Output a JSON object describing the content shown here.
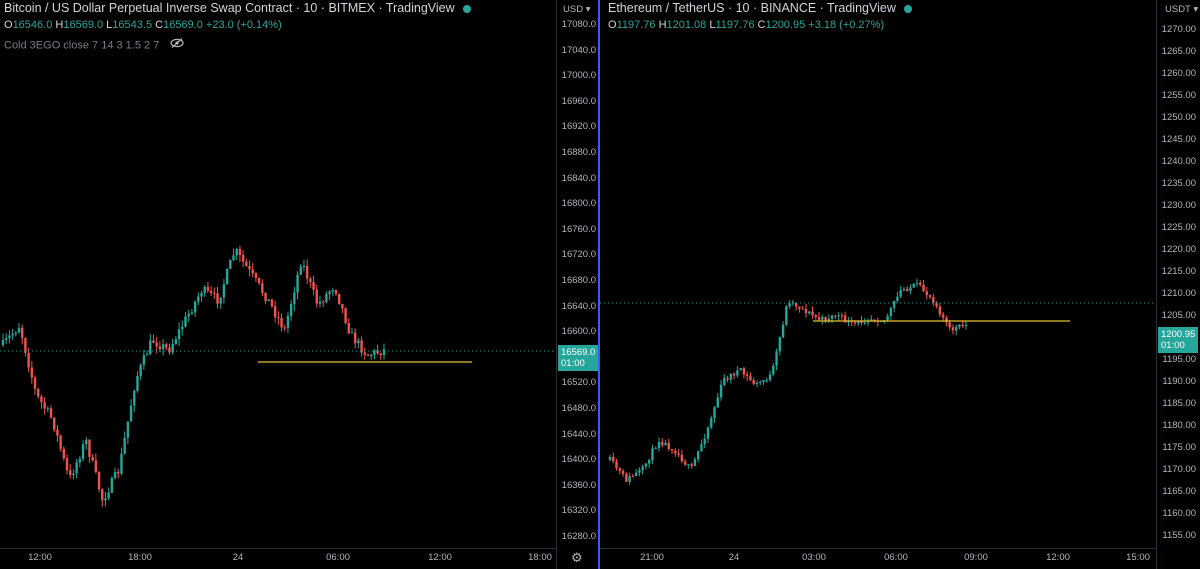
{
  "left": {
    "title": "Bitcoin / US Dollar Perpetual Inverse Swap Contract · 10 · BITMEX · TradingView",
    "ohlc": {
      "o_label": "O",
      "o": "16546.0",
      "h_label": "H",
      "h": "16569.0",
      "l_label": "L",
      "l": "16543.5",
      "c_label": "C",
      "c": "16569.0",
      "change": "+23.0 (+0.14%)"
    },
    "indicator": "Cold 3EGO close 7 14 3 1.5 2 7",
    "currency": "USD",
    "price_axis": [
      "17080.0",
      "17040.0",
      "17000.0",
      "16960.0",
      "16920.0",
      "16880.0",
      "16840.0",
      "16800.0",
      "16760.0",
      "16720.0",
      "16680.0",
      "16640.0",
      "16600.0",
      "16560.0",
      "16520.0",
      "16480.0",
      "16440.0",
      "16400.0",
      "16360.0",
      "16320.0",
      "16280.0"
    ],
    "time_axis": [
      "12:00",
      "18:00",
      "24",
      "06:00",
      "12:00",
      "18:00"
    ],
    "last_price": "16569.0",
    "last_countdown": "01:00",
    "colors": {
      "up": "#26a69a",
      "down": "#ef5350",
      "level": "#e6c12e"
    }
  },
  "right": {
    "title": "Ethereum / TetherUS · 10 · BINANCE · TradingView",
    "ohlc": {
      "o_label": "O",
      "o": "1197.76",
      "h_label": "H",
      "h": "1201.08",
      "l_label": "L",
      "l": "1197.76",
      "c_label": "C",
      "c": "1200.95",
      "change": "+3.18 (+0.27%)"
    },
    "currency": "USDT",
    "price_axis": [
      "1270.00",
      "1265.00",
      "1260.00",
      "1255.00",
      "1250.00",
      "1245.00",
      "1240.00",
      "1235.00",
      "1230.00",
      "1225.00",
      "1220.00",
      "1215.00",
      "1210.00",
      "1205.00",
      "1200.00",
      "1195.00",
      "1190.00",
      "1185.00",
      "1180.00",
      "1175.00",
      "1170.00",
      "1165.00",
      "1160.00",
      "1155.00"
    ],
    "time_axis": [
      "21:00",
      "24",
      "03:00",
      "06:00",
      "09:00",
      "12:00",
      "15:00"
    ],
    "last_price": "1200.95",
    "last_countdown": "01:00",
    "colors": {
      "up": "#26a69a",
      "down": "#ef5350",
      "level": "#e6c12e"
    }
  },
  "icons": {
    "status": "green-dot",
    "eye": "eye-slash-icon",
    "settings": "gear-icon"
  }
}
